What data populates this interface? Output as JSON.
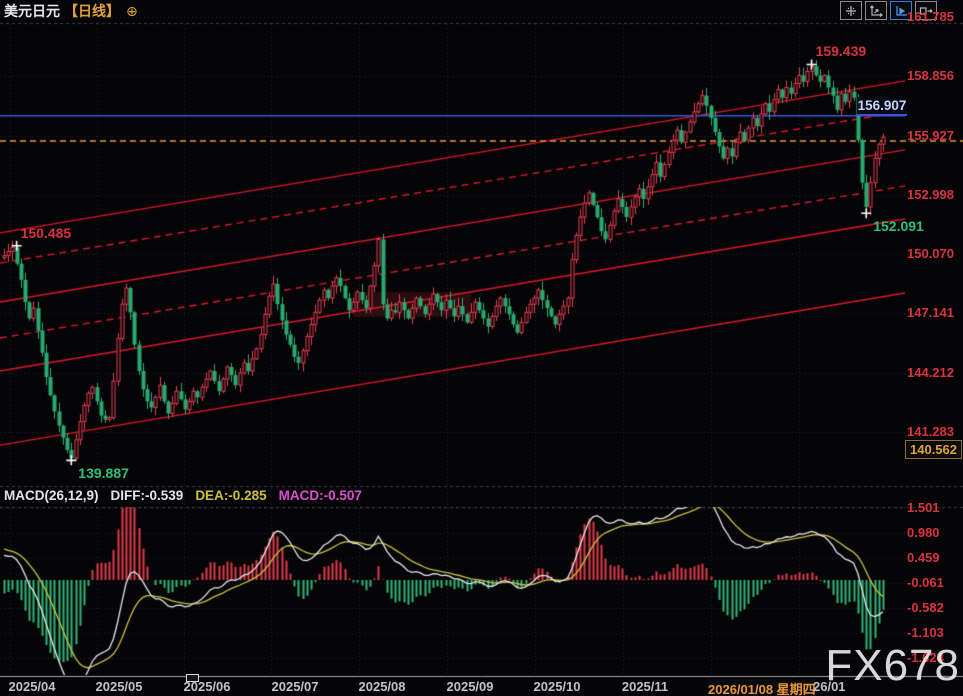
{
  "header": {
    "title": "美元日元",
    "timeframe": "【日线】",
    "add_icon": "⊕",
    "toolbar": [
      {
        "name": "pan-icon",
        "active": false
      },
      {
        "name": "axis-scale-icon",
        "active": false
      },
      {
        "name": "auto-fit-icon",
        "active": true
      },
      {
        "name": "shift-right-icon",
        "active": false
      }
    ]
  },
  "price_pane": {
    "axis_labels": [
      "161.785",
      "158.856",
      "155.927",
      "152.998",
      "150.070",
      "147.141",
      "144.212",
      "141.283"
    ],
    "boxed_axis_label": "140.562",
    "blue_level_label": "156.907",
    "annotations": [
      {
        "text": "150.485",
        "color": "red"
      },
      {
        "text": "139.887",
        "color": "green"
      },
      {
        "text": "159.439",
        "color": "red"
      },
      {
        "text": "152.091",
        "color": "green"
      }
    ]
  },
  "macd_pane": {
    "params_label": "MACD(26,12,9)",
    "diff_label": "DIFF:-0.539",
    "dea_label": "DEA:-0.285",
    "macd_label": "MACD:-0.507",
    "axis_labels": [
      "1.501",
      "0.980",
      "0.459",
      "-0.061",
      "-0.582",
      "-1.103",
      "-1.624"
    ]
  },
  "x_axis": {
    "labels": [
      "2025/04",
      "2025/05",
      "2025/06",
      "2025/07",
      "2025/08",
      "2025/09",
      "2025/10",
      "2025/11"
    ],
    "crosshair_label": "2026/01/08 星期四",
    "partial_label": "26/01"
  },
  "watermark": "FX678",
  "colors": {
    "background": "#050507",
    "bull_candle": "#e23c50",
    "bear_candle": "#28a971",
    "axis_text_red": "#d93341",
    "green_text": "#2ec07c",
    "channel_line": "#e0152e",
    "blue_line": "#3b54d6",
    "orange_dashed": "#e8963c",
    "diff_line": "#e6e6e8",
    "dea_line": "#cbc13f",
    "macd_text_magenta": "#dd4fd0",
    "hist_pos": "#e0394a",
    "hist_neg": "#2fb577",
    "grid": "#24242b",
    "watermark": "rgba(245,245,248,0.88)"
  },
  "chart_data": {
    "type": "candlestick+macd",
    "instrument": "USDJPY 美元日元",
    "timeframe": "daily 日线",
    "visible_start_index": 30,
    "closes": [
      146.0,
      146.4,
      146.8,
      147.2,
      147.6,
      148.0,
      148.4,
      148.8,
      149.2,
      149.5,
      149.8,
      150.0,
      150.1,
      149.9,
      150.0,
      150.1,
      149.9,
      150.0,
      150.2,
      150.0,
      149.9,
      150.1,
      150.0,
      149.8,
      150.0,
      150.1,
      149.9,
      150.0,
      150.1,
      149.9,
      150.0,
      150.2,
      150.4,
      149.6,
      148.8,
      147.7,
      146.9,
      147.4,
      146.3,
      145.2,
      144.0,
      143.1,
      142.3,
      141.6,
      141.0,
      140.4,
      140.0,
      140.9,
      141.8,
      142.6,
      143.2,
      143.5,
      142.8,
      142.1,
      141.9,
      142.0,
      143.8,
      145.9,
      147.6,
      148.4,
      147.2,
      145.6,
      144.3,
      143.4,
      142.8,
      142.5,
      143.0,
      143.6,
      142.8,
      142.2,
      142.7,
      143.3,
      142.9,
      142.4,
      142.8,
      143.3,
      143.0,
      143.5,
      143.9,
      144.3,
      143.8,
      143.3,
      143.9,
      144.5,
      144.1,
      143.6,
      144.2,
      144.7,
      144.3,
      144.9,
      145.4,
      146.1,
      147.1,
      148.0,
      148.6,
      147.6,
      146.8,
      146.1,
      145.6,
      145.0,
      144.7,
      145.3,
      146.0,
      146.6,
      147.2,
      147.8,
      148.3,
      147.9,
      148.5,
      148.9,
      148.5,
      147.9,
      147.3,
      147.7,
      148.2,
      147.8,
      147.4,
      148.5,
      149.5,
      150.8,
      147.6,
      146.9,
      147.3,
      147.2,
      147.7,
      147.3,
      146.9,
      147.4,
      147.9,
      147.5,
      147.1,
      147.6,
      148.1,
      147.7,
      147.3,
      147.8,
      147.4,
      147.0,
      147.5,
      147.1,
      146.7,
      147.2,
      147.7,
      147.3,
      146.9,
      146.5,
      147.0,
      147.5,
      147.9,
      147.5,
      147.1,
      146.6,
      146.2,
      146.7,
      147.2,
      147.6,
      147.9,
      148.3,
      147.8,
      147.4,
      147.0,
      146.6,
      147.1,
      147.5,
      147.9,
      149.8,
      151.0,
      151.9,
      152.6,
      153.1,
      152.5,
      151.9,
      151.2,
      150.8,
      151.5,
      152.2,
      152.8,
      152.4,
      151.9,
      152.4,
      152.9,
      153.3,
      152.8,
      153.4,
      154.0,
      154.6,
      153.9,
      154.5,
      155.1,
      155.7,
      156.2,
      155.6,
      156.1,
      156.6,
      157.1,
      157.5,
      157.9,
      157.4,
      156.8,
      156.1,
      155.4,
      154.8,
      155.3,
      154.9,
      155.6,
      156.1,
      155.7,
      156.3,
      156.8,
      156.4,
      157.0,
      157.5,
      157.1,
      157.7,
      158.2,
      157.8,
      158.3,
      158.0,
      158.5,
      158.9,
      158.6,
      159.1,
      159.35,
      158.9,
      158.6,
      158.9,
      158.3,
      157.9,
      157.2,
      158.0,
      157.6,
      158.1,
      157.8,
      155.7,
      153.6,
      152.4,
      153.6,
      154.8,
      155.5,
      155.85
    ],
    "extremes": [
      {
        "i": 33,
        "high": 150.485,
        "marker": true,
        "label": "150.485",
        "label_color": "red",
        "label_side": "above"
      },
      {
        "i": 46,
        "low": 139.887,
        "marker": true,
        "label": "139.887",
        "label_color": "green",
        "label_side": "below"
      },
      {
        "i": 119,
        "high": 150.92,
        "marker": false
      },
      {
        "i": 222,
        "high": 159.439,
        "marker": true,
        "label": "159.439",
        "label_color": "red",
        "label_side": "above"
      },
      {
        "i": 235,
        "low": 152.091,
        "marker": true,
        "label": "152.091",
        "label_color": "green",
        "label_side": "below"
      },
      {
        "i": 239,
        "high": 156.02,
        "marker": false
      }
    ],
    "price_axis_ticks": [
      161.785,
      158.856,
      155.927,
      152.998,
      150.07,
      147.141,
      144.212,
      141.283
    ],
    "special_axis_value": 140.562,
    "levels": {
      "blue_solid": 156.907,
      "orange_dashed": 155.66
    },
    "channel_lines": [
      {
        "price_left": 151.12,
        "price_right": 158.63,
        "style": "solid"
      },
      {
        "price_left": 149.63,
        "price_right": 157.14,
        "style": "dashed"
      },
      {
        "price_left": 147.71,
        "price_right": 155.22,
        "style": "solid"
      },
      {
        "price_left": 145.93,
        "price_right": 153.44,
        "style": "dashed"
      },
      {
        "price_left": 144.3,
        "price_right": 151.81,
        "style": "solid"
      },
      {
        "price_left": 140.64,
        "price_right": 148.15,
        "style": "solid"
      }
    ],
    "zones": [
      {
        "from_bar": 113,
        "to_bar": 141,
        "price_top": 148.2,
        "price_bottom": 146.97,
        "color": "rgba(190,35,50,0.20)"
      }
    ],
    "macd": {
      "fast": 12,
      "slow": 26,
      "signal": 9,
      "last_diff": -0.539,
      "last_dea": -0.285,
      "last_hist": -0.507,
      "axis_ticks": [
        1.501,
        0.98,
        0.459,
        -0.061,
        -0.582,
        -1.103,
        -1.624
      ],
      "histogram_formula": "2*(DIFF-DEA)"
    }
  }
}
